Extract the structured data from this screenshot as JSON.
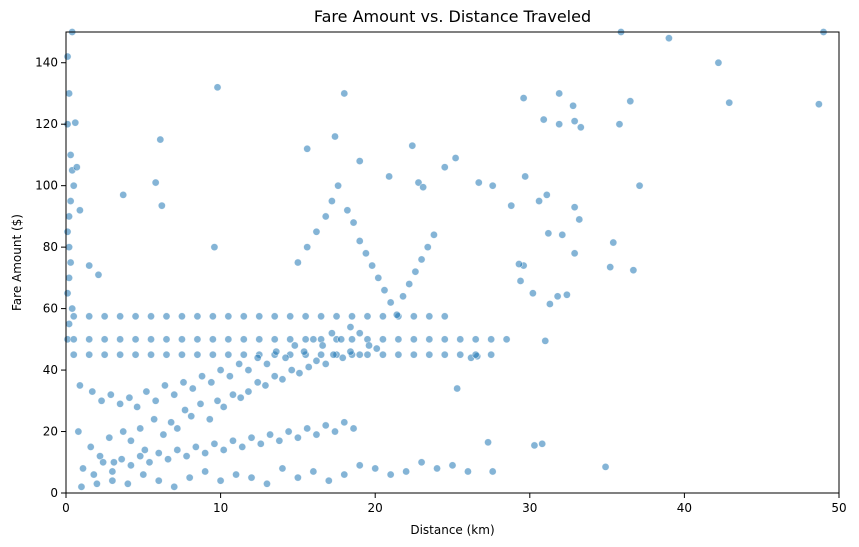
{
  "chart_data": {
    "type": "scatter",
    "title": "Fare Amount vs. Distance Traveled",
    "xlabel": "Distance (km)",
    "ylabel": "Fare Amount ($)",
    "xlim": [
      0,
      50
    ],
    "ylim": [
      0,
      150
    ],
    "x_ticks": [
      0,
      10,
      20,
      30,
      40,
      50
    ],
    "y_ticks": [
      0,
      20,
      40,
      60,
      80,
      100,
      120,
      140
    ],
    "grid": false,
    "legend": "none",
    "colors": {
      "point": "#1f77b4",
      "point_edge": "#ffffff",
      "axes": "#000000",
      "background": "#ffffff"
    },
    "point_opacity": 0.55,
    "series": [
      {
        "points": [
          [
            0.1,
            142
          ],
          [
            0.2,
            130
          ],
          [
            0.1,
            120
          ],
          [
            0.3,
            110
          ],
          [
            0.4,
            105
          ],
          [
            0.5,
            100
          ],
          [
            0.3,
            95
          ],
          [
            0.2,
            90
          ],
          [
            0.1,
            85
          ],
          [
            0.2,
            80
          ],
          [
            0.3,
            75
          ],
          [
            0.2,
            70
          ],
          [
            0.1,
            65
          ],
          [
            0.4,
            60
          ],
          [
            0.2,
            55
          ],
          [
            0.1,
            50
          ],
          [
            0.4,
            150
          ],
          [
            0.6,
            120.5
          ],
          [
            0.9,
            92
          ],
          [
            0.7,
            106
          ],
          [
            1.5,
            74
          ],
          [
            2.1,
            71
          ],
          [
            3.7,
            97
          ],
          [
            6.1,
            115
          ],
          [
            6.2,
            93.5
          ],
          [
            5.8,
            101
          ],
          [
            9.8,
            132
          ],
          [
            9.6,
            80
          ],
          [
            18.0,
            130
          ],
          [
            17.4,
            116
          ],
          [
            15.6,
            112
          ],
          [
            19.0,
            108
          ],
          [
            20.9,
            103
          ],
          [
            22.4,
            113
          ],
          [
            22.8,
            101
          ],
          [
            23.1,
            99.5
          ],
          [
            24.5,
            106
          ],
          [
            25.2,
            109
          ],
          [
            26.7,
            101
          ],
          [
            27.6,
            100
          ],
          [
            28.8,
            93.5
          ],
          [
            29.7,
            103
          ],
          [
            30.6,
            95
          ],
          [
            31.1,
            97
          ],
          [
            29.6,
            128.5
          ],
          [
            30.9,
            121.5
          ],
          [
            31.9,
            130
          ],
          [
            31.9,
            120
          ],
          [
            32.8,
            126
          ],
          [
            32.9,
            121
          ],
          [
            33.3,
            119
          ],
          [
            32.9,
            93
          ],
          [
            33.2,
            89
          ],
          [
            31.2,
            84.5
          ],
          [
            32.1,
            84
          ],
          [
            32.9,
            78
          ],
          [
            35.2,
            73.5
          ],
          [
            36.7,
            72.5
          ],
          [
            35.4,
            81.5
          ],
          [
            35.8,
            120
          ],
          [
            36.5,
            127.5
          ],
          [
            37.1,
            100
          ],
          [
            39.0,
            148
          ],
          [
            42.2,
            140
          ],
          [
            42.9,
            127
          ],
          [
            48.7,
            126.5
          ],
          [
            49.0,
            150
          ],
          [
            35.9,
            150
          ],
          [
            27.3,
            16.5
          ],
          [
            27.6,
            7
          ],
          [
            30.3,
            15.5
          ],
          [
            30.8,
            16
          ],
          [
            34.9,
            8.5
          ],
          [
            25.3,
            34
          ],
          [
            26.2,
            44
          ],
          [
            26.6,
            44.5
          ],
          [
            29.4,
            69
          ],
          [
            30.2,
            65
          ],
          [
            31.3,
            61.5
          ],
          [
            31.8,
            64
          ],
          [
            32.4,
            64.5
          ],
          [
            31.0,
            49.5
          ],
          [
            29.6,
            74
          ],
          [
            29.3,
            74.5
          ],
          [
            1,
            2
          ],
          [
            2,
            3
          ],
          [
            3,
            4
          ],
          [
            4,
            3
          ],
          [
            5,
            6
          ],
          [
            6,
            4
          ],
          [
            7,
            2
          ],
          [
            8,
            5
          ],
          [
            9,
            7
          ],
          [
            10,
            4
          ],
          [
            11,
            6
          ],
          [
            12,
            5
          ],
          [
            13,
            3
          ],
          [
            14,
            8
          ],
          [
            15,
            5
          ],
          [
            16,
            7
          ],
          [
            17,
            4
          ],
          [
            18,
            6
          ],
          [
            19,
            9
          ],
          [
            20,
            8
          ],
          [
            21,
            6
          ],
          [
            22,
            7
          ],
          [
            23,
            10
          ],
          [
            24,
            8
          ],
          [
            25,
            9
          ],
          [
            26,
            7
          ],
          [
            0.5,
            50
          ],
          [
            1.5,
            50
          ],
          [
            2.5,
            50
          ],
          [
            3.5,
            50
          ],
          [
            4.5,
            50
          ],
          [
            5.5,
            50
          ],
          [
            6.5,
            50
          ],
          [
            7.5,
            50
          ],
          [
            8.5,
            50
          ],
          [
            9.5,
            50
          ],
          [
            10.5,
            50
          ],
          [
            11.5,
            50
          ],
          [
            12.5,
            50
          ],
          [
            13.5,
            50
          ],
          [
            14.5,
            50
          ],
          [
            15.5,
            50
          ],
          [
            16.5,
            50
          ],
          [
            17.5,
            50
          ],
          [
            18.5,
            50
          ],
          [
            19.5,
            50
          ],
          [
            20.5,
            50
          ],
          [
            21.5,
            50
          ],
          [
            22.5,
            50
          ],
          [
            23.5,
            50
          ],
          [
            24.5,
            50
          ],
          [
            25.5,
            50
          ],
          [
            26.5,
            50
          ],
          [
            27.5,
            50
          ],
          [
            28.5,
            50
          ],
          [
            0.5,
            45
          ],
          [
            1.5,
            45
          ],
          [
            2.5,
            45
          ],
          [
            3.5,
            45
          ],
          [
            4.5,
            45
          ],
          [
            5.5,
            45
          ],
          [
            6.5,
            45
          ],
          [
            7.5,
            45
          ],
          [
            8.5,
            45
          ],
          [
            9.5,
            45
          ],
          [
            10.5,
            45
          ],
          [
            11.5,
            45
          ],
          [
            12.5,
            45
          ],
          [
            13.5,
            45
          ],
          [
            14.5,
            45
          ],
          [
            15.5,
            45
          ],
          [
            16.5,
            45
          ],
          [
            17.5,
            45
          ],
          [
            18.5,
            45
          ],
          [
            19.5,
            45
          ],
          [
            20.5,
            45
          ],
          [
            21.5,
            45
          ],
          [
            22.5,
            45
          ],
          [
            23.5,
            45
          ],
          [
            24.5,
            45
          ],
          [
            25.5,
            45
          ],
          [
            26.5,
            45
          ],
          [
            27.5,
            45
          ],
          [
            0.5,
            57.5
          ],
          [
            1.5,
            57.5
          ],
          [
            2.5,
            57.5
          ],
          [
            3.5,
            57.5
          ],
          [
            4.5,
            57.5
          ],
          [
            5.5,
            57.5
          ],
          [
            6.5,
            57.5
          ],
          [
            7.5,
            57.5
          ],
          [
            8.5,
            57.5
          ],
          [
            9.5,
            57.5
          ],
          [
            10.5,
            57.5
          ],
          [
            11.5,
            57.5
          ],
          [
            12.5,
            57.5
          ],
          [
            13.5,
            57.5
          ],
          [
            14.5,
            57.5
          ],
          [
            15.5,
            57.5
          ],
          [
            16.5,
            57.5
          ],
          [
            17.5,
            57.5
          ],
          [
            18.5,
            57.5
          ],
          [
            19.5,
            57.5
          ],
          [
            20.5,
            57.5
          ],
          [
            21.5,
            57.5
          ],
          [
            22.5,
            57.5
          ],
          [
            23.5,
            57.5
          ],
          [
            24.5,
            57.5
          ],
          [
            0.8,
            20
          ],
          [
            1.6,
            15
          ],
          [
            2.2,
            12
          ],
          [
            2.8,
            18
          ],
          [
            3.1,
            10
          ],
          [
            3.7,
            20
          ],
          [
            4.2,
            17
          ],
          [
            4.8,
            21
          ],
          [
            5.1,
            14
          ],
          [
            5.7,
            24
          ],
          [
            6.3,
            19
          ],
          [
            6.8,
            23
          ],
          [
            7.2,
            21
          ],
          [
            7.7,
            27
          ],
          [
            8.1,
            25
          ],
          [
            8.7,
            29
          ],
          [
            9.3,
            24
          ],
          [
            9.8,
            30
          ],
          [
            10.2,
            28
          ],
          [
            10.8,
            32
          ],
          [
            11.3,
            31
          ],
          [
            11.8,
            33
          ],
          [
            12.4,
            36
          ],
          [
            12.9,
            35
          ],
          [
            13.5,
            38
          ],
          [
            14.0,
            37
          ],
          [
            14.6,
            40
          ],
          [
            15.1,
            39
          ],
          [
            15.7,
            41
          ],
          [
            16.2,
            43
          ],
          [
            16.8,
            42
          ],
          [
            17.3,
            45
          ],
          [
            17.9,
            44
          ],
          [
            18.4,
            46
          ],
          [
            19.0,
            45
          ],
          [
            19.6,
            48
          ],
          [
            20.1,
            47
          ],
          [
            0.9,
            35
          ],
          [
            1.7,
            33
          ],
          [
            2.3,
            30
          ],
          [
            2.9,
            32
          ],
          [
            3.5,
            29
          ],
          [
            4.1,
            31
          ],
          [
            4.6,
            28
          ],
          [
            5.2,
            33
          ],
          [
            5.8,
            30
          ],
          [
            6.4,
            35
          ],
          [
            7.0,
            32
          ],
          [
            7.6,
            36
          ],
          [
            8.2,
            34
          ],
          [
            8.8,
            38
          ],
          [
            9.4,
            36
          ],
          [
            10.0,
            40
          ],
          [
            10.6,
            38
          ],
          [
            11.2,
            42
          ],
          [
            11.8,
            40
          ],
          [
            12.4,
            44
          ],
          [
            13.0,
            42
          ],
          [
            13.6,
            46
          ],
          [
            14.2,
            44
          ],
          [
            14.8,
            48
          ],
          [
            15.4,
            46
          ],
          [
            16.0,
            50
          ],
          [
            16.6,
            48
          ],
          [
            17.2,
            52
          ],
          [
            17.8,
            50
          ],
          [
            18.4,
            54
          ],
          [
            19.0,
            52
          ],
          [
            1.1,
            8
          ],
          [
            1.8,
            6
          ],
          [
            2.4,
            10
          ],
          [
            3.0,
            7
          ],
          [
            3.6,
            11
          ],
          [
            4.2,
            9
          ],
          [
            4.8,
            12
          ],
          [
            5.4,
            10
          ],
          [
            6.0,
            13
          ],
          [
            6.6,
            11
          ],
          [
            7.2,
            14
          ],
          [
            7.8,
            12
          ],
          [
            8.4,
            15
          ],
          [
            9.0,
            13
          ],
          [
            9.6,
            16
          ],
          [
            10.2,
            14
          ],
          [
            10.8,
            17
          ],
          [
            11.4,
            15
          ],
          [
            12.0,
            18
          ],
          [
            12.6,
            16
          ],
          [
            13.2,
            19
          ],
          [
            13.8,
            17
          ],
          [
            14.4,
            20
          ],
          [
            15.0,
            18
          ],
          [
            15.6,
            21
          ],
          [
            16.2,
            19
          ],
          [
            16.8,
            22
          ],
          [
            17.4,
            20
          ],
          [
            18.0,
            23
          ],
          [
            18.6,
            21
          ],
          [
            15.0,
            75
          ],
          [
            15.6,
            80
          ],
          [
            16.2,
            85
          ],
          [
            16.8,
            90
          ],
          [
            17.2,
            95
          ],
          [
            17.6,
            100
          ],
          [
            18.2,
            92
          ],
          [
            18.6,
            88
          ],
          [
            19.0,
            82
          ],
          [
            19.4,
            78
          ],
          [
            19.8,
            74
          ],
          [
            20.2,
            70
          ],
          [
            20.6,
            66
          ],
          [
            21.0,
            62
          ],
          [
            21.4,
            58
          ],
          [
            21.8,
            64
          ],
          [
            22.2,
            68
          ],
          [
            22.6,
            72
          ],
          [
            23.0,
            76
          ],
          [
            23.4,
            80
          ],
          [
            23.8,
            84
          ]
        ]
      }
    ]
  }
}
